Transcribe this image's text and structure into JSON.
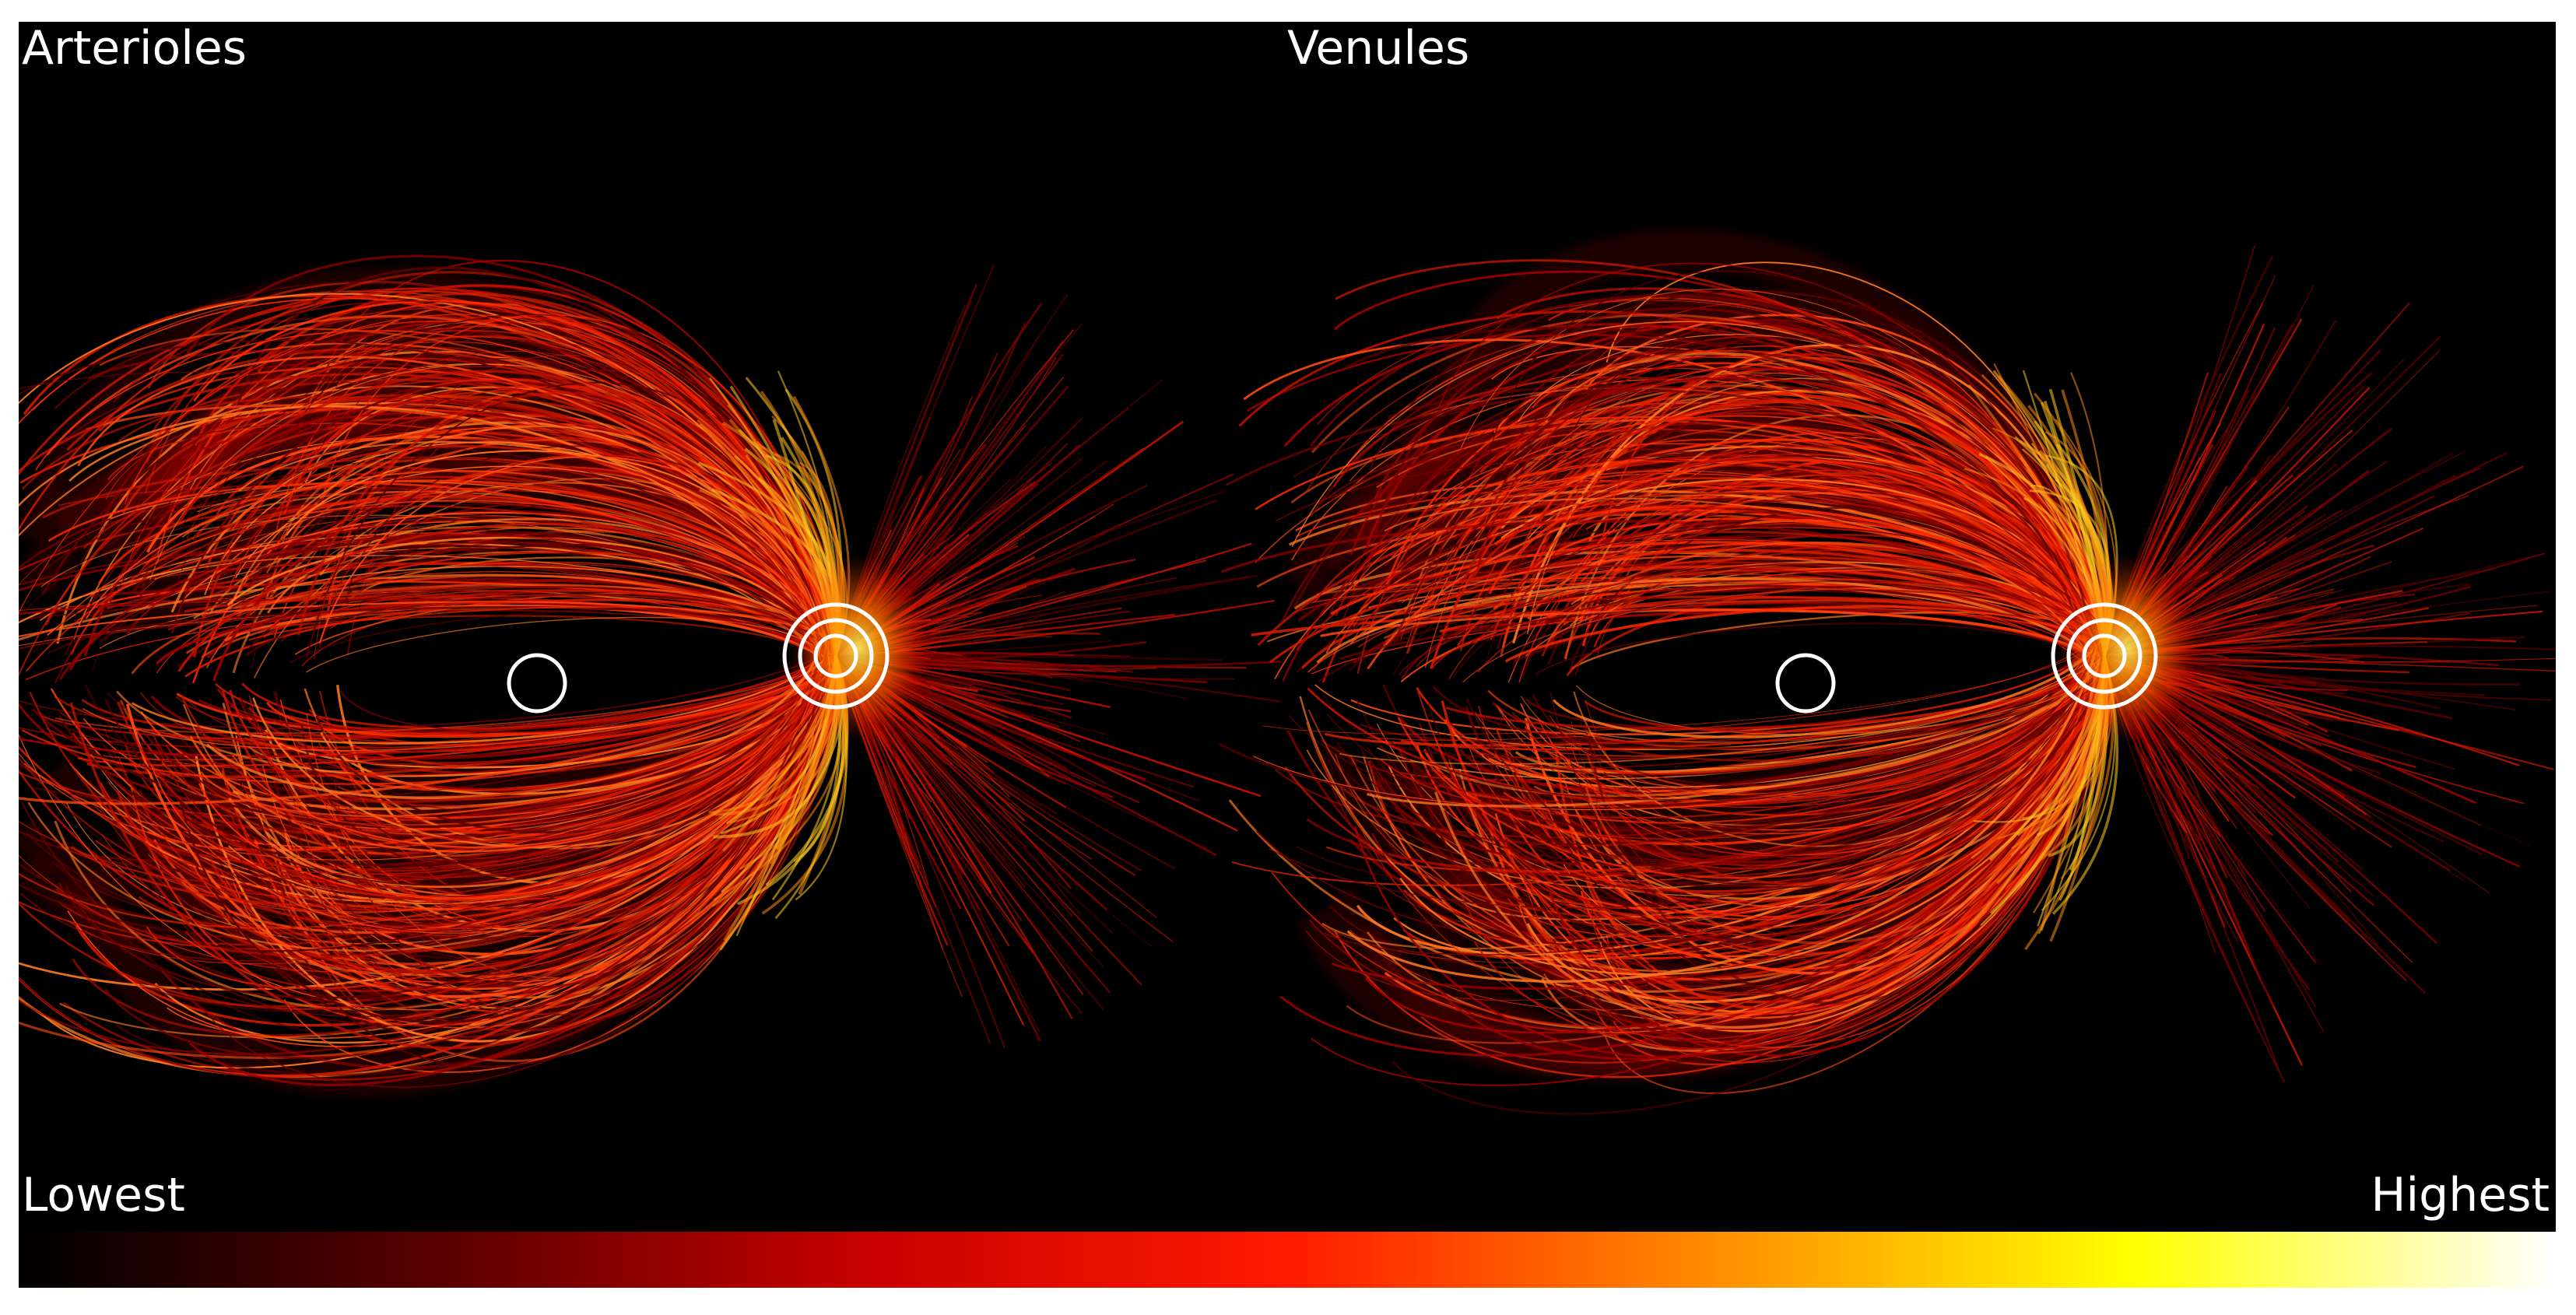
{
  "panels": {
    "left_title": "Arterioles",
    "right_title": "Venules"
  },
  "colorbar": {
    "low_label": "Lowest",
    "high_label": "Highest",
    "colormap": "hot",
    "stops": [
      "#000000",
      "#5a0000",
      "#c80000",
      "#ff1a00",
      "#ff8c00",
      "#ffff00",
      "#ffffff"
    ]
  },
  "colors": {
    "background": "#000000",
    "marker": "#ffffff"
  },
  "icons": [
    "fovea-marker-icon",
    "optic-disc-marker-icon"
  ]
}
